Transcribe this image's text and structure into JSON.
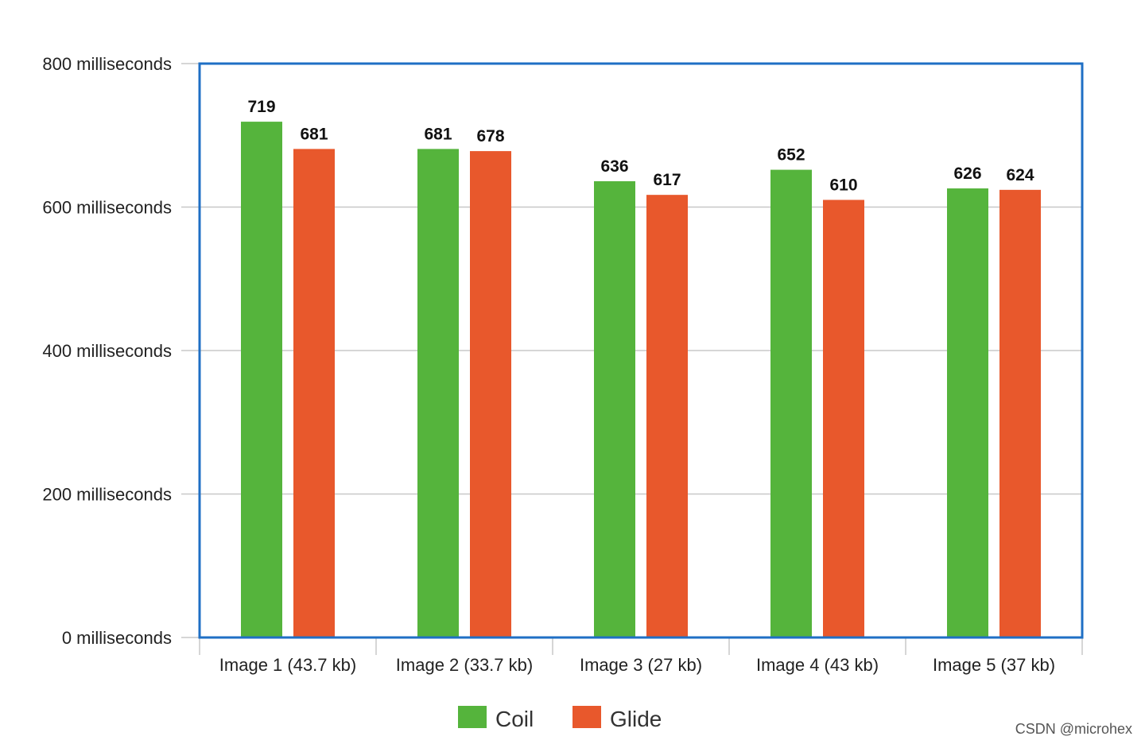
{
  "chart_data": {
    "type": "bar",
    "categories": [
      "Image 1 (43.7 kb)",
      "Image 2 (33.7 kb)",
      "Image 3 (27 kb)",
      "Image 4 (43 kb)",
      "Image 5 (37 kb)"
    ],
    "series": [
      {
        "name": "Coil",
        "values": [
          719,
          681,
          636,
          652,
          626
        ],
        "color": "#55b43c"
      },
      {
        "name": "Glide",
        "values": [
          681,
          678,
          617,
          610,
          624
        ],
        "color": "#e8582c"
      }
    ],
    "ylim": [
      0,
      800
    ],
    "yticks": [
      0,
      200,
      400,
      600,
      800
    ],
    "ytick_labels": [
      "0 milliseconds",
      "200 milliseconds",
      "400 milliseconds",
      "600 milliseconds",
      "800 milliseconds"
    ],
    "grid": true,
    "legend_position": "bottom-center",
    "frame_color": "#1f6fc5"
  },
  "legend": {
    "coil": "Coil",
    "glide": "Glide"
  },
  "watermark": "CSDN @microhex"
}
